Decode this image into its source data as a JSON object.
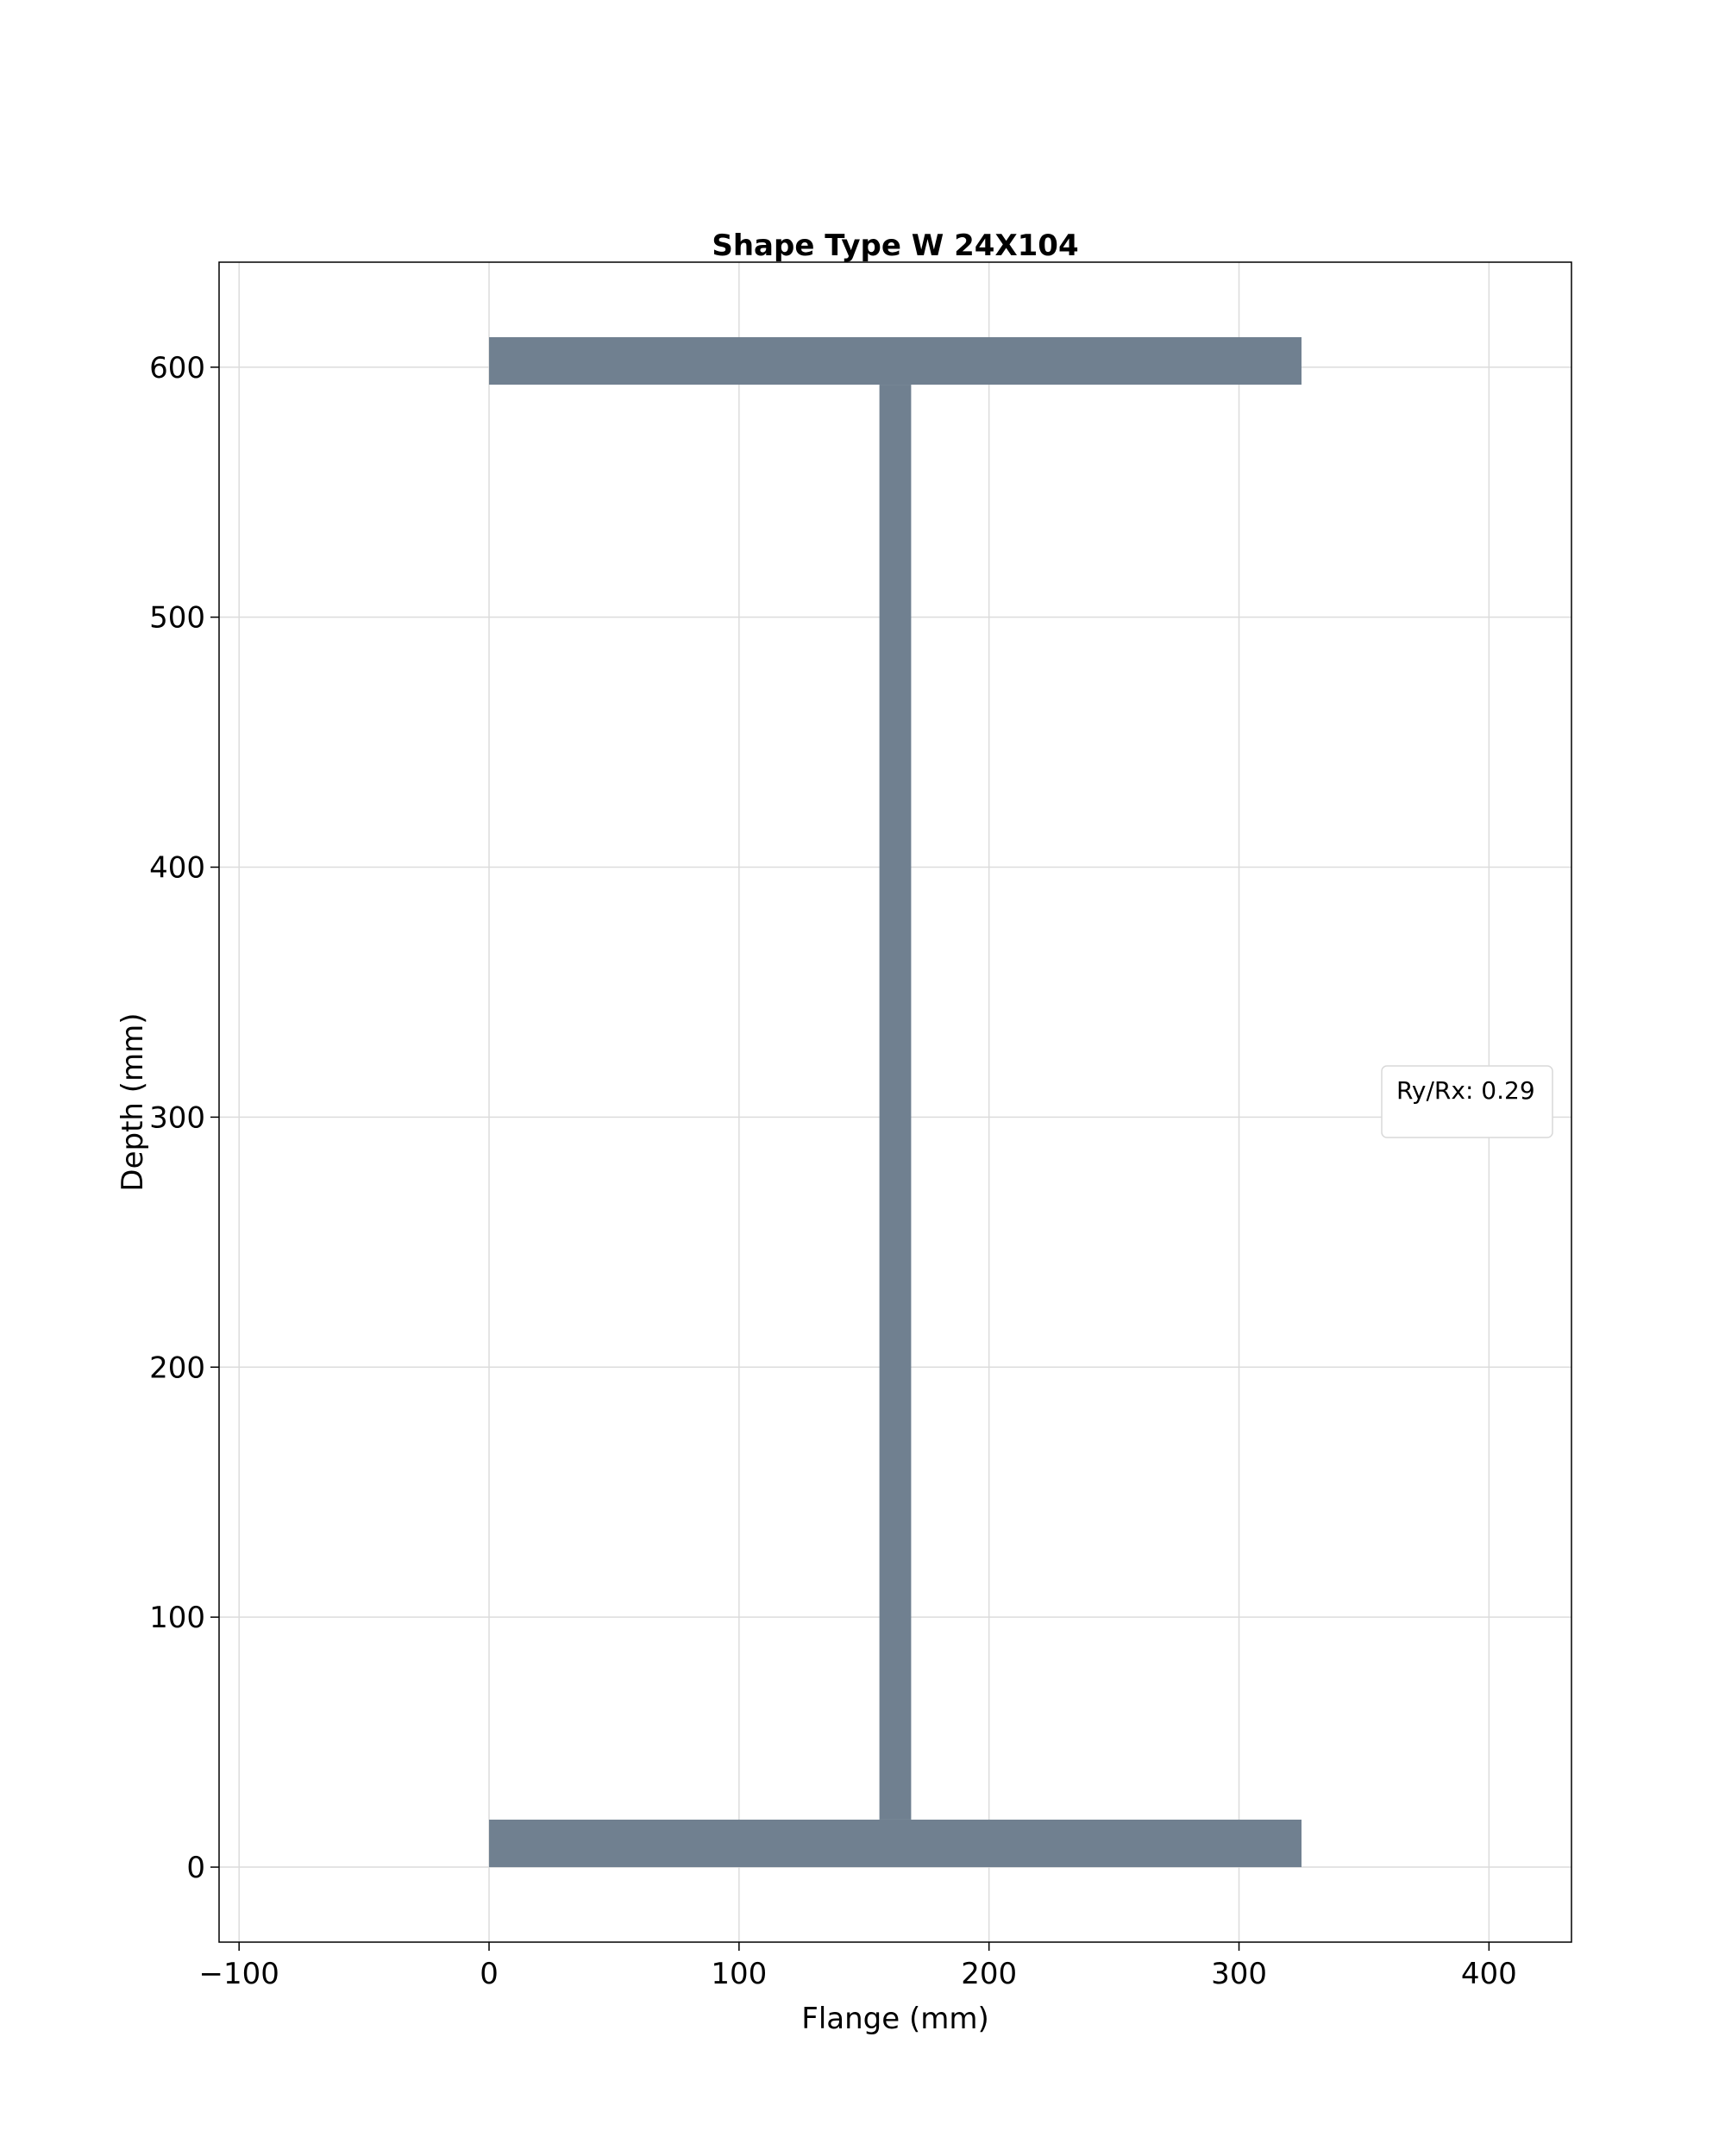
{
  "chart_data": {
    "type": "polygon",
    "title": "Shape Type W 24X104",
    "xlabel": "Flange (mm)",
    "ylabel": "Depth (mm)",
    "xlim": [
      -108,
      433
    ],
    "ylim": [
      -30,
      642
    ],
    "xticks": [
      -100,
      0,
      100,
      200,
      300,
      400
    ],
    "xtick_labels": [
      "−100",
      "0",
      "100",
      "200",
      "300",
      "400"
    ],
    "yticks": [
      0,
      100,
      200,
      300,
      400,
      500,
      600
    ],
    "ytick_labels": [
      "0",
      "100",
      "200",
      "300",
      "400",
      "500",
      "600"
    ],
    "grid": true,
    "fill_color": "#708090",
    "shape": {
      "name": "W 24X104",
      "depth": 612,
      "flange_width": 325,
      "flange_thickness": 19,
      "web_thickness": 12.7,
      "web_left": 156.15,
      "web_right": 168.85
    },
    "legend": {
      "text": "Ry/Rx: 0.29",
      "placement": "center-right"
    }
  }
}
